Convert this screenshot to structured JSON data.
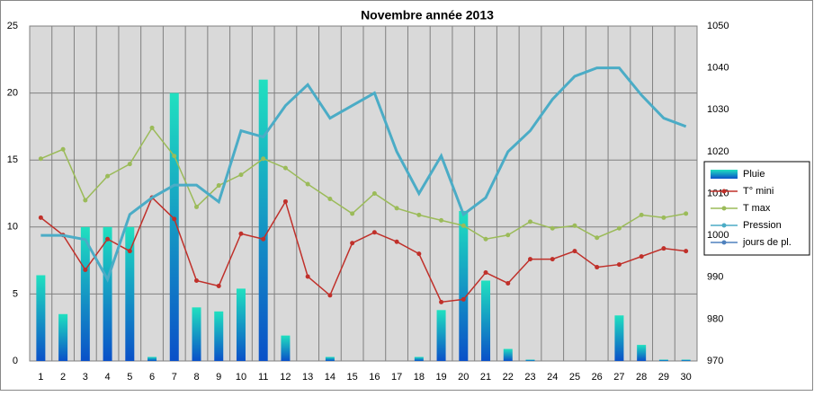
{
  "chart_data": {
    "type": "bar-line",
    "title": "Novembre année 2013",
    "categories": [
      "1",
      "2",
      "3",
      "4",
      "5",
      "6",
      "7",
      "8",
      "9",
      "10",
      "11",
      "12",
      "13",
      "14",
      "15",
      "16",
      "17",
      "18",
      "19",
      "20",
      "21",
      "22",
      "23",
      "24",
      "25",
      "26",
      "27",
      "28",
      "29",
      "30"
    ],
    "ylim": [
      0,
      25
    ],
    "yticks": [
      0,
      5,
      10,
      15,
      20,
      25
    ],
    "y2lim": [
      970,
      1050
    ],
    "y2ticks": [
      970,
      980,
      990,
      1000,
      1010,
      1020,
      1030,
      1040,
      1050
    ],
    "grid": true,
    "legend": "right",
    "series": [
      {
        "name": "Pluie",
        "kind": "bar",
        "color": "#1a8fd8",
        "values": [
          6.4,
          3.5,
          10,
          10,
          10,
          0.3,
          20,
          4.0,
          3.7,
          5.4,
          21,
          1.9,
          0,
          0.3,
          0,
          0,
          0,
          0.3,
          3.8,
          11.2,
          6.0,
          0.9,
          0.1,
          0,
          0,
          0,
          3.4,
          1.2,
          0.1,
          0.1
        ]
      },
      {
        "name": "T° mini",
        "kind": "line",
        "color": "#c0302a",
        "values": [
          10.7,
          9.4,
          6.8,
          9.1,
          8.2,
          12.2,
          10.6,
          6.0,
          5.6,
          9.5,
          9.1,
          11.9,
          6.3,
          4.9,
          8.8,
          9.6,
          8.9,
          8.0,
          4.4,
          4.6,
          6.6,
          5.8,
          7.6,
          7.6,
          8.2,
          7.0,
          7.2,
          7.8,
          8.4,
          8.2
        ]
      },
      {
        "name": "T max",
        "kind": "line",
        "color": "#9bbb59",
        "values": [
          15.1,
          15.8,
          12.0,
          13.8,
          14.7,
          17.4,
          15.3,
          11.5,
          13.1,
          13.9,
          15.1,
          14.4,
          13.2,
          12.1,
          11.0,
          12.5,
          11.4,
          10.9,
          10.5,
          10.1,
          9.1,
          9.4,
          10.4,
          9.9,
          10.1,
          9.2,
          9.9,
          10.9,
          10.7,
          11.0
        ]
      },
      {
        "name": "Pression",
        "kind": "line",
        "axis": "y2",
        "color": "#4bacc6",
        "values": [
          1000,
          1000,
          999,
          989.5,
          1005,
          1009,
          1012,
          1012,
          1008,
          1025,
          1023.5,
          1031,
          1036,
          1028,
          1031,
          1034,
          1020,
          1010,
          1019,
          1005,
          1009,
          1020,
          1025,
          1032.5,
          1038,
          1040,
          1040,
          1033.5,
          1028,
          1026
        ]
      },
      {
        "name": "jours de pl.",
        "kind": "line",
        "color": "#4f81bd",
        "values": [
          null,
          null,
          null,
          null,
          null,
          null,
          null,
          null,
          null,
          null,
          null,
          null,
          null,
          null,
          null,
          null,
          null,
          null,
          null,
          null,
          null,
          null,
          null,
          null,
          null,
          null,
          null,
          null,
          null,
          null
        ]
      }
    ]
  }
}
